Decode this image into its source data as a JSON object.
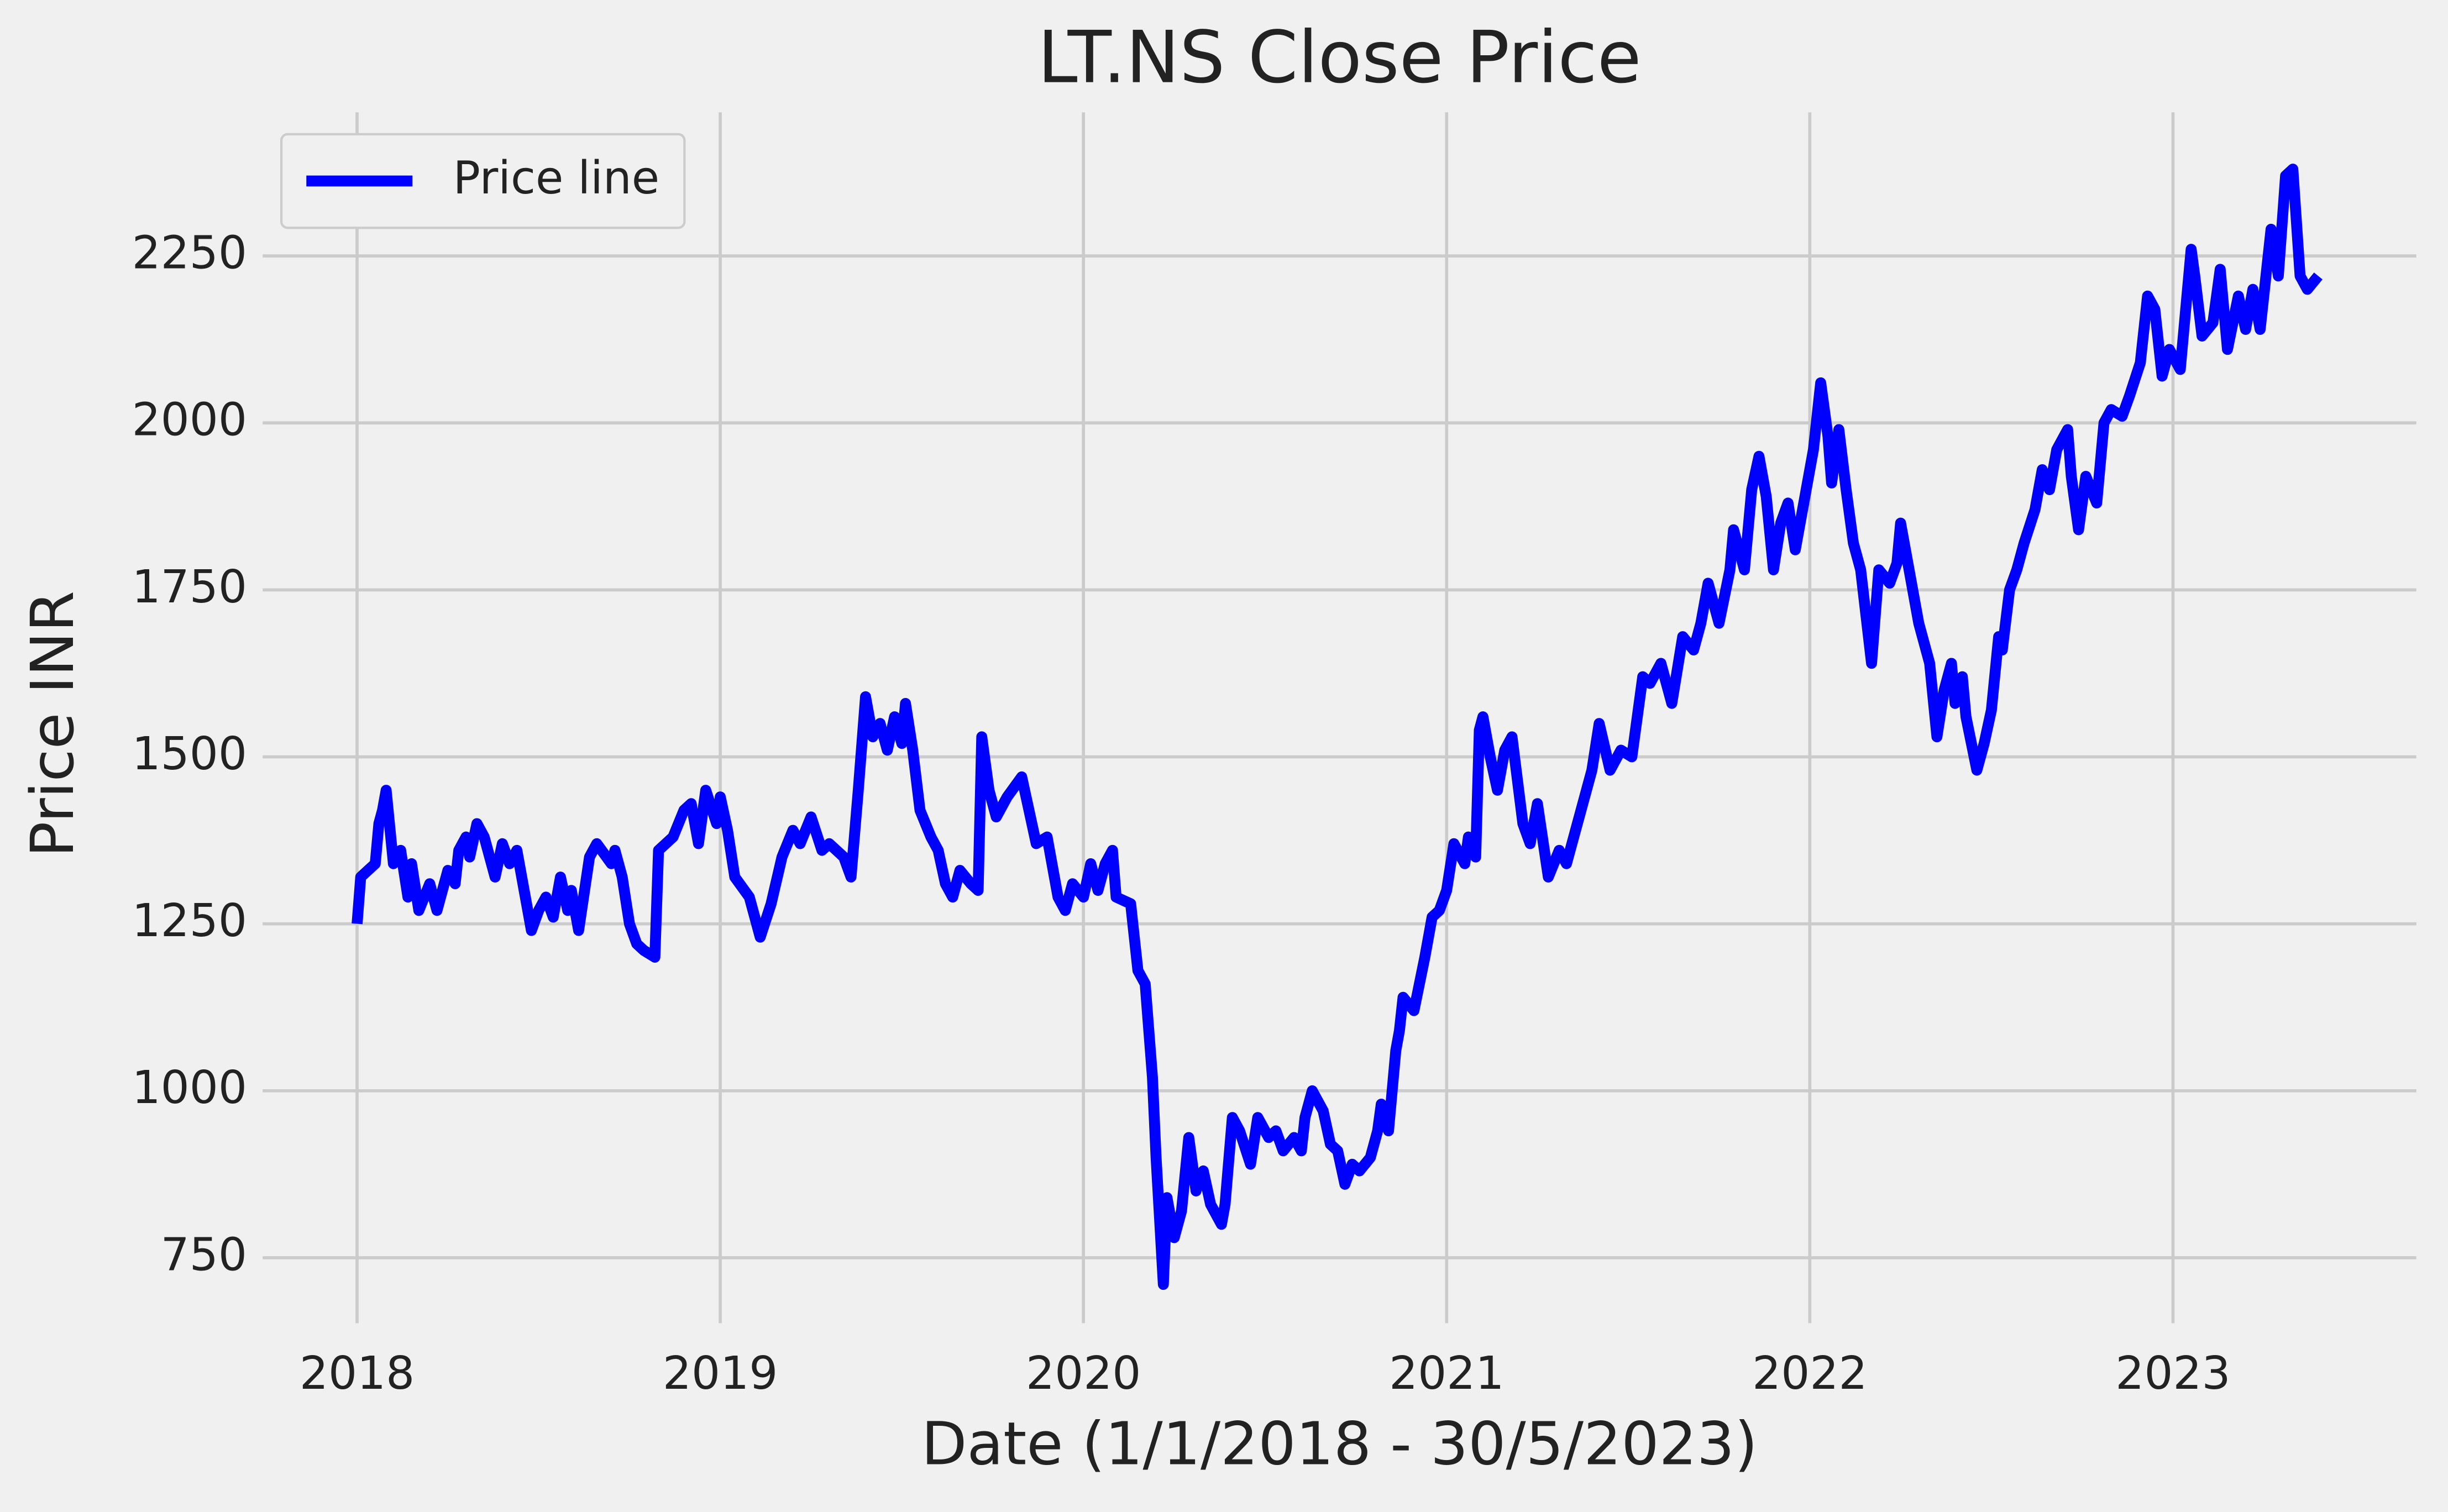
{
  "chart_data": {
    "type": "line",
    "title": "LT.NS Close Price",
    "x_label": "Date (1/1/2018 - 30/5/2023)",
    "y_label": "Price INR",
    "x": [
      2018.0,
      2018.01,
      2018.03,
      2018.05,
      2018.06,
      2018.07,
      2018.08,
      2018.1,
      2018.12,
      2018.14,
      2018.15,
      2018.17,
      2018.2,
      2018.22,
      2018.25,
      2018.27,
      2018.28,
      2018.3,
      2018.31,
      2018.33,
      2018.35,
      2018.38,
      2018.4,
      2018.42,
      2018.44,
      2018.46,
      2018.48,
      2018.5,
      2018.52,
      2018.54,
      2018.56,
      2018.58,
      2018.59,
      2018.61,
      2018.64,
      2018.66,
      2018.7,
      2018.71,
      2018.73,
      2018.75,
      2018.77,
      2018.79,
      2018.82,
      2018.83,
      2018.87,
      2018.9,
      2018.92,
      2018.94,
      2018.96,
      2018.99,
      2019.0,
      2019.02,
      2019.04,
      2019.08,
      2019.11,
      2019.14,
      2019.17,
      2019.2,
      2019.22,
      2019.25,
      2019.28,
      2019.3,
      2019.34,
      2019.36,
      2019.38,
      2019.4,
      2019.42,
      2019.44,
      2019.46,
      2019.48,
      2019.5,
      2019.51,
      2019.53,
      2019.55,
      2019.58,
      2019.6,
      2019.62,
      2019.64,
      2019.66,
      2019.69,
      2019.71,
      2019.72,
      2019.74,
      2019.76,
      2019.79,
      2019.83,
      2019.85,
      2019.87,
      2019.9,
      2019.93,
      2019.95,
      2019.97,
      2020.0,
      2020.02,
      2020.04,
      2020.06,
      2020.08,
      2020.09,
      2020.13,
      2020.15,
      2020.17,
      2020.19,
      2020.2,
      2020.22,
      2020.23,
      2020.25,
      2020.27,
      2020.29,
      2020.31,
      2020.33,
      2020.35,
      2020.38,
      2020.39,
      2020.41,
      2020.43,
      2020.46,
      2020.48,
      2020.51,
      2020.53,
      2020.55,
      2020.58,
      2020.6,
      2020.61,
      2020.63,
      2020.66,
      2020.68,
      2020.7,
      2020.72,
      2020.74,
      2020.76,
      2020.79,
      2020.81,
      2020.82,
      2020.84,
      2020.86,
      2020.87,
      2020.88,
      2020.91,
      2020.94,
      2020.96,
      2020.98,
      2021.0,
      2021.02,
      2021.05,
      2021.06,
      2021.08,
      2021.09,
      2021.1,
      2021.12,
      2021.14,
      2021.16,
      2021.18,
      2021.21,
      2021.23,
      2021.25,
      2021.28,
      2021.31,
      2021.33,
      2021.36,
      2021.4,
      2021.42,
      2021.45,
      2021.48,
      2021.51,
      2021.54,
      2021.56,
      2021.59,
      2021.62,
      2021.65,
      2021.68,
      2021.7,
      2021.72,
      2021.75,
      2021.78,
      2021.79,
      2021.82,
      2021.84,
      2021.86,
      2021.88,
      2021.9,
      2021.92,
      2021.94,
      2021.96,
      2021.99,
      2022.01,
      2022.03,
      2022.05,
      2022.06,
      2022.08,
      2022.1,
      2022.12,
      2022.14,
      2022.17,
      2022.19,
      2022.22,
      2022.24,
      2022.25,
      2022.28,
      2022.3,
      2022.33,
      2022.35,
      2022.37,
      2022.39,
      2022.4,
      2022.42,
      2022.43,
      2022.46,
      2022.48,
      2022.5,
      2022.52,
      2022.53,
      2022.55,
      2022.57,
      2022.59,
      2022.62,
      2022.64,
      2022.66,
      2022.68,
      2022.71,
      2022.72,
      2022.74,
      2022.76,
      2022.79,
      2022.81,
      2022.83,
      2022.86,
      2022.88,
      2022.91,
      2022.93,
      2022.95,
      2022.97,
      2022.99,
      2023.02,
      2023.05,
      2023.06,
      2023.08,
      2023.11,
      2023.13,
      2023.15,
      2023.18,
      2023.2,
      2023.22,
      2023.24,
      2023.27,
      2023.29,
      2023.31,
      2023.33,
      2023.35,
      2023.37,
      2023.4
    ],
    "series": [
      {
        "name": "Price line",
        "color": "#0000ff",
        "values": [
          1250,
          1320,
          1330,
          1340,
          1400,
          1420,
          1450,
          1340,
          1360,
          1290,
          1340,
          1270,
          1310,
          1270,
          1330,
          1310,
          1360,
          1380,
          1350,
          1400,
          1380,
          1320,
          1370,
          1340,
          1360,
          1300,
          1240,
          1270,
          1290,
          1260,
          1320,
          1270,
          1300,
          1240,
          1350,
          1370,
          1340,
          1360,
          1320,
          1250,
          1220,
          1210,
          1200,
          1360,
          1380,
          1420,
          1430,
          1370,
          1450,
          1400,
          1440,
          1390,
          1320,
          1290,
          1230,
          1280,
          1350,
          1390,
          1370,
          1410,
          1360,
          1370,
          1350,
          1320,
          1450,
          1590,
          1530,
          1550,
          1510,
          1560,
          1520,
          1580,
          1510,
          1420,
          1380,
          1360,
          1310,
          1290,
          1330,
          1310,
          1300,
          1530,
          1450,
          1410,
          1440,
          1470,
          1420,
          1370,
          1380,
          1290,
          1270,
          1310,
          1290,
          1340,
          1300,
          1340,
          1360,
          1290,
          1280,
          1180,
          1160,
          1020,
          900,
          710,
          840,
          780,
          820,
          930,
          850,
          880,
          830,
          800,
          830,
          960,
          940,
          890,
          960,
          930,
          940,
          910,
          930,
          910,
          960,
          1000,
          970,
          920,
          910,
          860,
          890,
          880,
          900,
          940,
          980,
          940,
          1060,
          1090,
          1140,
          1120,
          1200,
          1260,
          1270,
          1300,
          1370,
          1340,
          1380,
          1350,
          1540,
          1560,
          1500,
          1450,
          1510,
          1530,
          1400,
          1370,
          1430,
          1320,
          1360,
          1340,
          1400,
          1480,
          1550,
          1480,
          1510,
          1500,
          1620,
          1610,
          1640,
          1580,
          1680,
          1660,
          1700,
          1760,
          1700,
          1780,
          1840,
          1780,
          1900,
          1950,
          1890,
          1780,
          1850,
          1880,
          1810,
          1900,
          1960,
          2060,
          1980,
          1910,
          1990,
          1900,
          1820,
          1780,
          1640,
          1780,
          1760,
          1790,
          1850,
          1760,
          1700,
          1640,
          1530,
          1600,
          1640,
          1580,
          1620,
          1560,
          1480,
          1520,
          1570,
          1680,
          1660,
          1750,
          1780,
          1820,
          1870,
          1930,
          1900,
          1960,
          1990,
          1920,
          1840,
          1920,
          1880,
          2000,
          2020,
          2010,
          2040,
          2090,
          2190,
          2170,
          2070,
          2110,
          2080,
          2260,
          2220,
          2130,
          2150,
          2230,
          2110,
          2190,
          2140,
          2200,
          2140,
          2290,
          2220,
          2370,
          2380,
          2220,
          2200,
          2220
        ]
      }
    ],
    "xlim": [
      2017.74,
      2023.67
    ],
    "xticks": [
      2018,
      2019,
      2020,
      2021,
      2022,
      2023
    ],
    "ylim": [
      652,
      2465
    ],
    "yticks": [
      750,
      1000,
      1250,
      1500,
      1750,
      2000,
      2250
    ],
    "grid": true,
    "legend": "upper left"
  }
}
